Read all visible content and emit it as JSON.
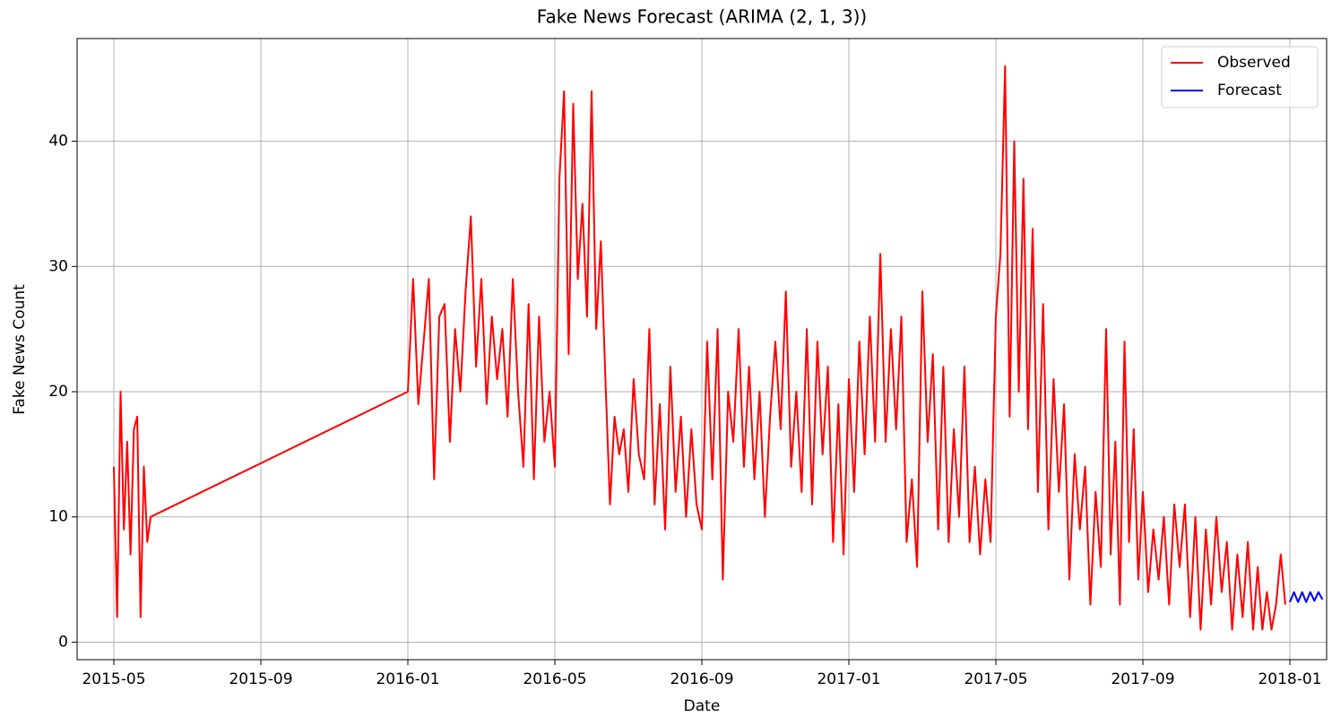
{
  "chart_data": {
    "type": "line",
    "title": "Fake News Forecast (ARIMA (2, 1, 3))",
    "xlabel": "Date",
    "ylabel": "Fake News Count",
    "xlim": [
      "2015-04",
      "2018-02"
    ],
    "xticks": [
      "2015-05",
      "2015-09",
      "2016-01",
      "2016-05",
      "2016-09",
      "2017-01",
      "2017-05",
      "2017-09",
      "2018-01"
    ],
    "ylim": [
      -1.4,
      48.2
    ],
    "yticks": [
      0,
      10,
      20,
      30,
      40
    ],
    "grid": true,
    "legend": "upper right",
    "series": [
      {
        "name": "Observed",
        "color": "#ff0000",
        "x": [
          "2015-05",
          "2015-05",
          "2015-05",
          "2015-05",
          "2015-05",
          "2015-05",
          "2015-05",
          "2015-05",
          "2015-05",
          "2015-05",
          "2015-05",
          "2015-06",
          "2016-01",
          "2016-01",
          "2016-01",
          "2016-01",
          "2016-01",
          "2016-01",
          "2016-01",
          "2016-02",
          "2016-02",
          "2016-02",
          "2016-02",
          "2016-02",
          "2016-02",
          "2016-02",
          "2016-03",
          "2016-03",
          "2016-03",
          "2016-03",
          "2016-03",
          "2016-03",
          "2016-03",
          "2016-04",
          "2016-04",
          "2016-04",
          "2016-04",
          "2016-04",
          "2016-04",
          "2016-04",
          "2016-05",
          "2016-05",
          "2016-05",
          "2016-05",
          "2016-05",
          "2016-05",
          "2016-05",
          "2016-05",
          "2016-06",
          "2016-06",
          "2016-06",
          "2016-06",
          "2016-06",
          "2016-06",
          "2016-06",
          "2016-06",
          "2016-07",
          "2016-07",
          "2016-07",
          "2016-07",
          "2016-07",
          "2016-07",
          "2016-07",
          "2016-08",
          "2016-08",
          "2016-08",
          "2016-08",
          "2016-08",
          "2016-08",
          "2016-08",
          "2016-09",
          "2016-09",
          "2016-09",
          "2016-09",
          "2016-09",
          "2016-09",
          "2016-09",
          "2016-10",
          "2016-10",
          "2016-10",
          "2016-10",
          "2016-10",
          "2016-10",
          "2016-10",
          "2016-11",
          "2016-11",
          "2016-11",
          "2016-11",
          "2016-11",
          "2016-11",
          "2016-11",
          "2016-12",
          "2016-12",
          "2016-12",
          "2016-12",
          "2016-12",
          "2016-12",
          "2016-12",
          "2017-01",
          "2017-01",
          "2017-01",
          "2017-01",
          "2017-01",
          "2017-01",
          "2017-01",
          "2017-02",
          "2017-02",
          "2017-02",
          "2017-02",
          "2017-02",
          "2017-02",
          "2017-02",
          "2017-03",
          "2017-03",
          "2017-03",
          "2017-03",
          "2017-03",
          "2017-03",
          "2017-03",
          "2017-04",
          "2017-04",
          "2017-04",
          "2017-04",
          "2017-04",
          "2017-04",
          "2017-04",
          "2017-05",
          "2017-05",
          "2017-05",
          "2017-05",
          "2017-05",
          "2017-05",
          "2017-05",
          "2017-05",
          "2017-06",
          "2017-06",
          "2017-06",
          "2017-06",
          "2017-06",
          "2017-06",
          "2017-06",
          "2017-07",
          "2017-07",
          "2017-07",
          "2017-07",
          "2017-07",
          "2017-07",
          "2017-07",
          "2017-08",
          "2017-08",
          "2017-08",
          "2017-08",
          "2017-08",
          "2017-08",
          "2017-08",
          "2017-08",
          "2017-09",
          "2017-09",
          "2017-09",
          "2017-09",
          "2017-09",
          "2017-09",
          "2017-09",
          "2017-10",
          "2017-10",
          "2017-10",
          "2017-10",
          "2017-10",
          "2017-10",
          "2017-10",
          "2017-11",
          "2017-11",
          "2017-11",
          "2017-11",
          "2017-11",
          "2017-11",
          "2017-11",
          "2017-12",
          "2017-12",
          "2017-12",
          "2017-12",
          "2017-12",
          "2017-12",
          "2017-12",
          "2017-12"
        ],
        "values": [
          14,
          2,
          20,
          9,
          16,
          7,
          17,
          18,
          2,
          14,
          8,
          10,
          20,
          29,
          19,
          24,
          29,
          13,
          26,
          27,
          16,
          25,
          20,
          28,
          34,
          22,
          29,
          19,
          26,
          21,
          25,
          18,
          29,
          20,
          14,
          27,
          13,
          26,
          16,
          20,
          14,
          37,
          44,
          23,
          43,
          29,
          35,
          26,
          44,
          25,
          32,
          21,
          11,
          18,
          15,
          17,
          12,
          21,
          15,
          13,
          25,
          11,
          19,
          9,
          22,
          12,
          18,
          10,
          17,
          11,
          9,
          24,
          13,
          25,
          5,
          20,
          16,
          25,
          14,
          22,
          13,
          20,
          10,
          18,
          24,
          17,
          28,
          14,
          20,
          12,
          25,
          11,
          24,
          15,
          22,
          8,
          19,
          7,
          21,
          12,
          24,
          15,
          26,
          16,
          31,
          16,
          25,
          17,
          26,
          8,
          13,
          6,
          28,
          16,
          23,
          9,
          22,
          8,
          17,
          10,
          22,
          8,
          14,
          7,
          13,
          8,
          26,
          31,
          46,
          18,
          40,
          20,
          37,
          17,
          33,
          12,
          27,
          9,
          21,
          12,
          19,
          5,
          15,
          9,
          14,
          3,
          12,
          6,
          25,
          7,
          16,
          3,
          24,
          8,
          17,
          5,
          12,
          4,
          9,
          5,
          10,
          3,
          11,
          6,
          11,
          2,
          10,
          1,
          9,
          3,
          10,
          4,
          8,
          1,
          7,
          2,
          8,
          1,
          6,
          1,
          4,
          1,
          3,
          7,
          3
        ]
      },
      {
        "name": "Forecast",
        "color": "#0000ff",
        "x": [
          "2018-01",
          "2018-01",
          "2018-01",
          "2018-01",
          "2018-01",
          "2018-01",
          "2018-01",
          "2018-01",
          "2018-01"
        ],
        "values": [
          3.2,
          4,
          3.2,
          4,
          3.2,
          4,
          3.3,
          4,
          3.4
        ]
      }
    ]
  }
}
